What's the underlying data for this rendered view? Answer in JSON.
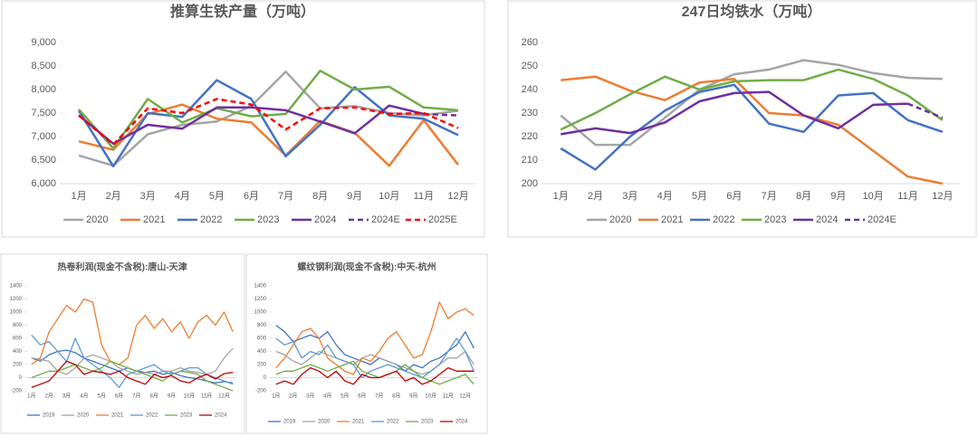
{
  "chart_data": [
    {
      "type": "line",
      "title": "推算生铁产量（万吨）",
      "categories": [
        "1月",
        "2月",
        "3月",
        "4月",
        "5月",
        "6月",
        "7月",
        "8月",
        "9月",
        "10月",
        "11月",
        "12月"
      ],
      "ylim": [
        6000,
        9000
      ],
      "yticks": [
        {
          "value": 6000,
          "label": "6,000"
        },
        {
          "value": 6500,
          "label": "6,500"
        },
        {
          "value": 7000,
          "label": "7,000"
        },
        {
          "value": 7500,
          "label": "7,500"
        },
        {
          "value": 8000,
          "label": "8,000"
        },
        {
          "value": 8500,
          "label": "8,500"
        },
        {
          "value": 9000,
          "label": "9,000"
        }
      ],
      "series": [
        {
          "name": "2020",
          "color": "#a5a5a5",
          "values": [
            6600,
            6380,
            7050,
            7250,
            7320,
            7650,
            8380,
            7600,
            7650,
            7500,
            7450,
            7550
          ]
        },
        {
          "name": "2021",
          "color": "#ed7d31",
          "values": [
            6900,
            6720,
            7480,
            7680,
            7380,
            7300,
            6600,
            7330,
            7080,
            6380,
            7350,
            6400
          ]
        },
        {
          "name": "2022",
          "color": "#4472c4",
          "values": [
            7550,
            6370,
            7500,
            7420,
            8200,
            7800,
            6580,
            7250,
            8050,
            7450,
            7380,
            7030
          ]
        },
        {
          "name": "2023",
          "color": "#70ad47",
          "values": [
            7580,
            6750,
            7800,
            7300,
            7600,
            7430,
            7480,
            8400,
            8000,
            8060,
            7620,
            7560
          ]
        },
        {
          "name": "2024",
          "color": "#7030a0",
          "values": [
            7450,
            6850,
            7250,
            7170,
            7620,
            7620,
            7560,
            7320,
            7070,
            7660,
            7480,
            null
          ]
        },
        {
          "name": "2024E",
          "color": "#7030a0",
          "dashed": true,
          "values": [
            null,
            null,
            null,
            null,
            null,
            null,
            null,
            null,
            null,
            null,
            7480,
            7450
          ]
        },
        {
          "name": "2025E",
          "color": "#ff0000",
          "dashed": true,
          "values": [
            7450,
            6830,
            7600,
            7500,
            7800,
            7680,
            7150,
            7600,
            7620,
            7480,
            7500,
            7180
          ]
        }
      ]
    },
    {
      "type": "line",
      "title": "247日均铁水（万吨）",
      "categories": [
        "1月",
        "2月",
        "3月",
        "4月",
        "5月",
        "6月",
        "7月",
        "8月",
        "9月",
        "10月",
        "11月",
        "12月"
      ],
      "ylim": [
        200,
        260
      ],
      "yticks": [
        200,
        210,
        220,
        230,
        240,
        250,
        260
      ],
      "series": [
        {
          "name": "2020",
          "color": "#a5a5a5",
          "values": [
            229,
            216.5,
            216.5,
            228,
            240,
            246.5,
            248.5,
            252.5,
            250.5,
            247,
            245,
            244.5
          ]
        },
        {
          "name": "2021",
          "color": "#ed7d31",
          "values": [
            244,
            245.5,
            239.5,
            235.5,
            243,
            244.5,
            230,
            229,
            225,
            214,
            203,
            200
          ]
        },
        {
          "name": "2022",
          "color": "#4472c4",
          "values": [
            215,
            206,
            220,
            231,
            239,
            242,
            225.5,
            222,
            237.5,
            238.5,
            227,
            222
          ]
        },
        {
          "name": "2023",
          "color": "#70ad47",
          "values": [
            223,
            230,
            238,
            245.5,
            240,
            243.5,
            244,
            244,
            248.5,
            244.5,
            237.5,
            227
          ]
        },
        {
          "name": "2024",
          "color": "#7030a0",
          "values": [
            221,
            223.5,
            221.5,
            226,
            235,
            238.5,
            239,
            229,
            223.5,
            233.5,
            234,
            null
          ]
        },
        {
          "name": "2024E",
          "color": "#7030a0",
          "dashed": true,
          "values": [
            null,
            null,
            null,
            null,
            null,
            null,
            null,
            null,
            null,
            null,
            234,
            228
          ]
        }
      ]
    },
    {
      "type": "line",
      "title": "热卷利润(现金不含税):唐山-天津",
      "categories": [
        "1月",
        null,
        "2月",
        null,
        "3月",
        null,
        "4月",
        null,
        "5月",
        null,
        "6月",
        null,
        "7月",
        null,
        "8月",
        null,
        "9月",
        null,
        "10月",
        null,
        "11月",
        null,
        "12月",
        null
      ],
      "ylim": [
        -200,
        1400
      ],
      "yticks": [
        -200,
        0,
        200,
        400,
        600,
        800,
        1000,
        1200,
        1400
      ],
      "series": [
        {
          "name": "2019",
          "color": "#4472c4",
          "values": [
            300,
            250,
            350,
            400,
            420,
            380,
            300,
            250,
            200,
            150,
            100,
            150,
            100,
            80,
            100,
            50,
            80,
            30,
            0,
            -20,
            -50,
            -80,
            -60,
            -80
          ]
        },
        {
          "name": "2020",
          "color": "#a5a5a5",
          "values": [
            300,
            280,
            250,
            100,
            50,
            150,
            300,
            350,
            300,
            250,
            150,
            100,
            50,
            80,
            50,
            100,
            100,
            150,
            100,
            80,
            50,
            100,
            300,
            450
          ]
        },
        {
          "name": "2021",
          "color": "#ed7d31",
          "values": [
            200,
            300,
            700,
            900,
            1100,
            1000,
            1200,
            1150,
            500,
            250,
            200,
            300,
            800,
            950,
            750,
            900,
            700,
            850,
            600,
            850,
            950,
            800,
            1000,
            700
          ]
        },
        {
          "name": "2022",
          "color": "#5b9bd5",
          "values": [
            650,
            500,
            550,
            400,
            250,
            600,
            300,
            200,
            100,
            0,
            -150,
            50,
            100,
            150,
            200,
            100,
            50,
            100,
            150,
            150,
            50,
            0,
            -50,
            -100
          ]
        },
        {
          "name": "2023",
          "color": "#70ad47",
          "values": [
            0,
            50,
            100,
            100,
            150,
            200,
            150,
            100,
            150,
            250,
            200,
            150,
            100,
            50,
            0,
            -50,
            50,
            100,
            80,
            50,
            -50,
            -100,
            -150,
            -200
          ]
        },
        {
          "name": "2024",
          "color": "#c00000",
          "values": [
            -150,
            -100,
            -50,
            100,
            250,
            200,
            50,
            100,
            80,
            50,
            100,
            0,
            -50,
            -100,
            50,
            0,
            30,
            -50,
            -80,
            0,
            50,
            -20,
            60,
            80
          ]
        }
      ]
    },
    {
      "type": "line",
      "title": "螺纹钢利润(现金不含税):中天-杭州",
      "categories": [
        "1月",
        null,
        "2月",
        null,
        "3月",
        null,
        "4月",
        null,
        "5月",
        null,
        "6月",
        null,
        "7月",
        null,
        "8月",
        null,
        "9月",
        null,
        "10月",
        null,
        "11月",
        null,
        "12月",
        null
      ],
      "ylim": [
        -200,
        1400
      ],
      "yticks": [
        -200,
        0,
        200,
        400,
        600,
        800,
        1000,
        1200,
        1400
      ],
      "series": [
        {
          "name": "2019",
          "color": "#4472c4",
          "values": [
            800,
            700,
            550,
            600,
            650,
            600,
            700,
            500,
            350,
            300,
            250,
            200,
            300,
            250,
            200,
            100,
            200,
            150,
            250,
            300,
            400,
            500,
            700,
            450
          ]
        },
        {
          "name": "2020",
          "color": "#a5a5a5",
          "values": [
            400,
            350,
            250,
            200,
            300,
            400,
            350,
            300,
            250,
            200,
            300,
            350,
            300,
            250,
            200,
            150,
            100,
            50,
            100,
            200,
            300,
            300,
            400,
            200
          ]
        },
        {
          "name": "2021",
          "color": "#ed7d31",
          "values": [
            150,
            300,
            500,
            700,
            750,
            600,
            300,
            200,
            100,
            50,
            300,
            250,
            400,
            600,
            700,
            500,
            300,
            350,
            700,
            1150,
            900,
            1000,
            1050,
            950
          ]
        },
        {
          "name": "2022",
          "color": "#5b9bd5",
          "values": [
            600,
            500,
            550,
            300,
            400,
            350,
            500,
            300,
            250,
            200,
            0,
            100,
            150,
            200,
            150,
            100,
            50,
            0,
            100,
            200,
            400,
            600,
            400,
            100
          ]
        },
        {
          "name": "2023",
          "color": "#70ad47",
          "values": [
            50,
            100,
            100,
            150,
            200,
            150,
            100,
            150,
            200,
            250,
            100,
            50,
            0,
            50,
            100,
            200,
            100,
            0,
            -50,
            -100,
            -50,
            0,
            50,
            -100
          ]
        },
        {
          "name": "2024",
          "color": "#c00000",
          "values": [
            -100,
            -50,
            -100,
            50,
            150,
            100,
            0,
            100,
            -50,
            -100,
            50,
            0,
            0,
            50,
            100,
            -50,
            0,
            -100,
            -50,
            50,
            150,
            100,
            100,
            100
          ]
        }
      ]
    }
  ]
}
